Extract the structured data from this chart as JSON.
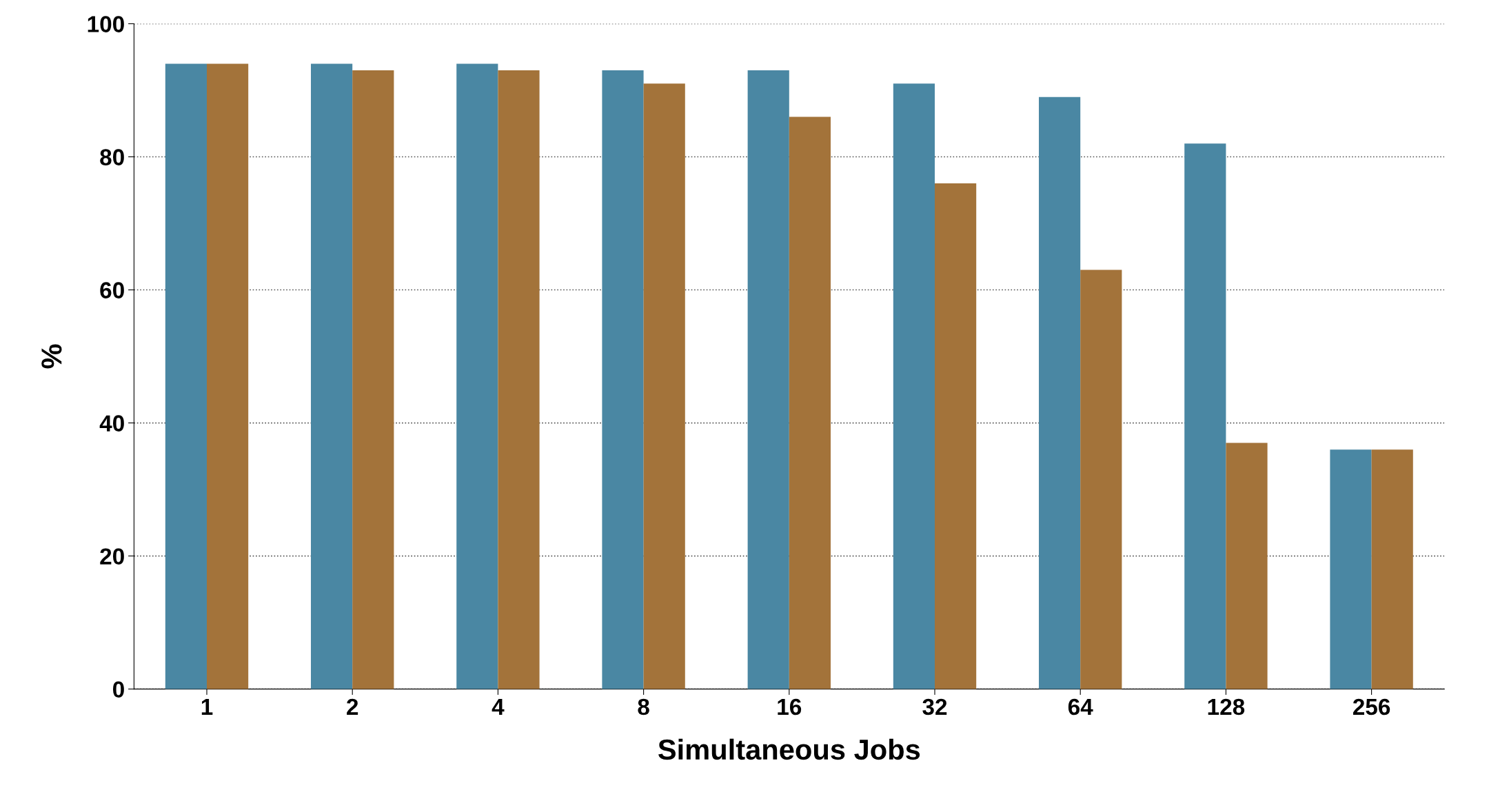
{
  "chart_data": {
    "type": "bar",
    "xlabel": "Simultaneous Jobs",
    "ylabel": "%",
    "categories": [
      "1",
      "2",
      "4",
      "8",
      "16",
      "32",
      "64",
      "128",
      "256"
    ],
    "series": [
      {
        "color": "#4a87a3",
        "values": [
          94,
          94,
          94,
          93,
          93,
          91,
          89,
          82,
          36
        ]
      },
      {
        "color": "#a3733a",
        "values": [
          94,
          93,
          93,
          91,
          86,
          76,
          63,
          37,
          36
        ]
      }
    ],
    "ylim": [
      0,
      100
    ],
    "yticks": [
      0,
      20,
      40,
      60,
      80,
      100
    ],
    "grid": "y"
  }
}
